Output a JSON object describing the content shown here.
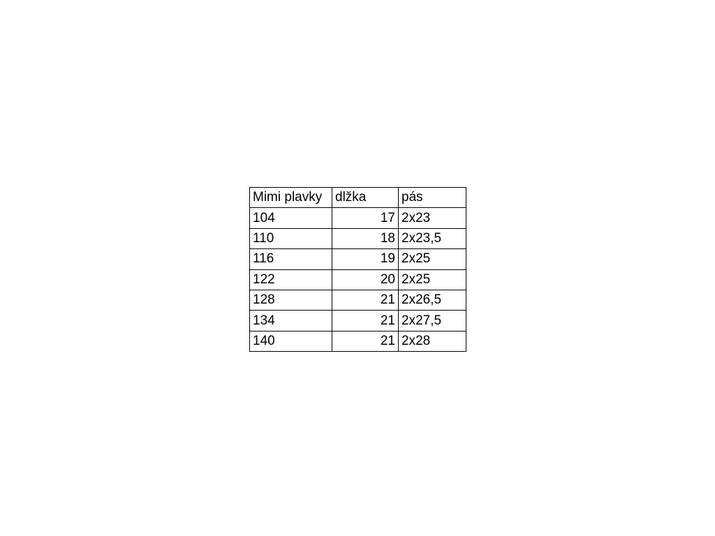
{
  "chart_data": {
    "type": "table",
    "title": "",
    "columns": [
      "Mimi plavky",
      "dlžka",
      "pás"
    ],
    "column_alignments": [
      "left",
      "right",
      "left"
    ],
    "rows": [
      [
        "104",
        "17",
        "2x23"
      ],
      [
        "110",
        "18",
        "2x23,5"
      ],
      [
        "116",
        "19",
        "2x25"
      ],
      [
        "122",
        "20",
        "2x25"
      ],
      [
        "128",
        "21",
        "2x26,5"
      ],
      [
        "134",
        "21",
        "2x27,5"
      ],
      [
        "140",
        "21",
        "2x28"
      ]
    ]
  },
  "colors": {
    "background": "#ffffff",
    "table_border": "#000000",
    "text": "#000000"
  }
}
